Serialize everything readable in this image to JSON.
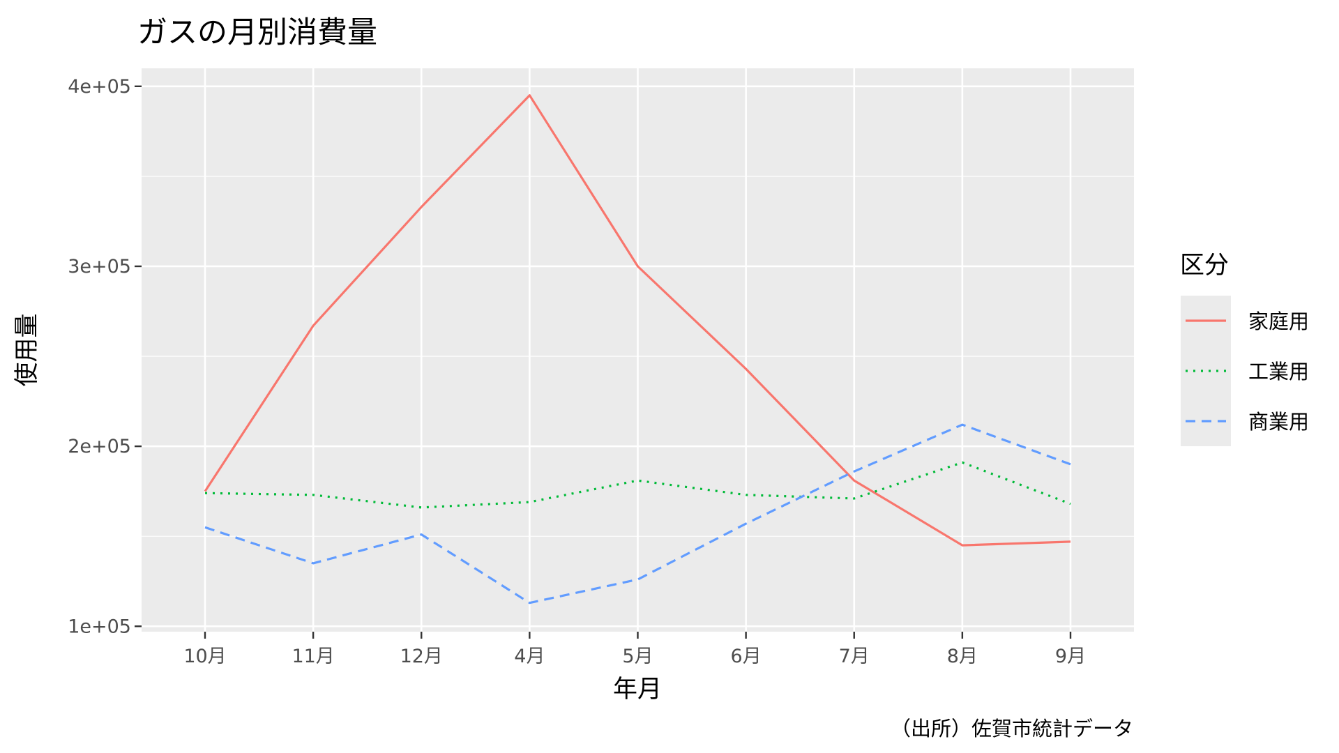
{
  "chart_data": {
    "type": "line",
    "title": "ガスの月別消費量",
    "xlabel": "年月",
    "ylabel": "使用量",
    "caption": "（出所）佐賀市統計データ",
    "categories": [
      "10月",
      "11月",
      "12月",
      "4月",
      "5月",
      "6月",
      "7月",
      "8月",
      "9月"
    ],
    "ylim": [
      97000,
      410000
    ],
    "yticks": [
      100000,
      200000,
      300000,
      400000
    ],
    "ytick_labels": [
      "1e+05",
      "2e+05",
      "3e+05",
      "4e+05"
    ],
    "grid": true,
    "legend": {
      "title": "区分",
      "placement": "right"
    },
    "series": [
      {
        "name": "家庭用",
        "color": "#F8766D",
        "linetype": "solid",
        "values": [
          175000,
          267000,
          333000,
          395000,
          300000,
          243000,
          181000,
          145000,
          147000
        ]
      },
      {
        "name": "工業用",
        "color": "#00BA38",
        "linetype": "dotted",
        "values": [
          174000,
          173000,
          166000,
          169000,
          181000,
          173000,
          171000,
          191000,
          168000
        ]
      },
      {
        "name": "商業用",
        "color": "#619CFF",
        "linetype": "dashed",
        "values": [
          155000,
          135000,
          151000,
          113000,
          126000,
          157000,
          186000,
          212000,
          190000
        ]
      }
    ]
  }
}
